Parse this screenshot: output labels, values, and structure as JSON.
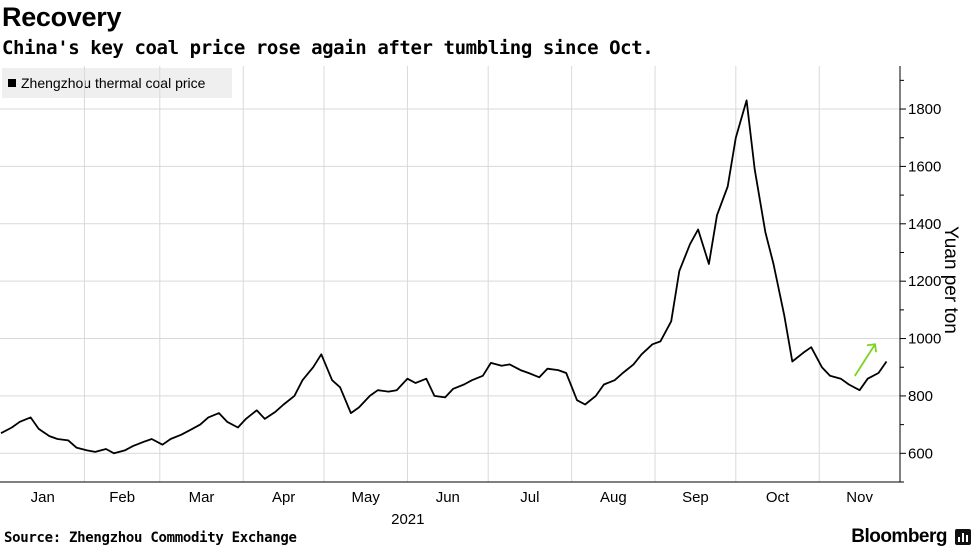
{
  "title": "Recovery",
  "subtitle": "China's key coal price rose again after tumbling since Oct.",
  "source": "Source: Zhengzhou Commodity Exchange",
  "brand": "Bloomberg",
  "colors": {
    "line": "#000000",
    "grid": "#d9d9d9",
    "arrow": "#7dd321",
    "legend_bg": "#efefef"
  },
  "chart_data": {
    "type": "line",
    "title": "Recovery",
    "subtitle": "China's key coal price rose again after tumbling since Oct.",
    "ylabel": "Yuan per ton",
    "xlabel": "2021",
    "ylim": [
      500,
      1950
    ],
    "yticks": [
      600,
      800,
      1000,
      1200,
      1400,
      1600,
      1800
    ],
    "y_axis_side": "right",
    "grid": true,
    "legend_position": "top-left",
    "x_tick_labels": [
      "Jan",
      "Feb",
      "Mar",
      "Apr",
      "May",
      "Jun",
      "Jul",
      "Aug",
      "Sep",
      "Oct",
      "Nov"
    ],
    "x_year_label": "2021",
    "annotation": "up-arrow",
    "series": [
      {
        "name": "Zhengzhou thermal coal price",
        "x": [
          "2021-01-01",
          "2021-01-05",
          "2021-01-08",
          "2021-01-12",
          "2021-01-15",
          "2021-01-19",
          "2021-01-22",
          "2021-01-26",
          "2021-01-29",
          "2021-02-02",
          "2021-02-05",
          "2021-02-09",
          "2021-02-12",
          "2021-02-16",
          "2021-02-19",
          "2021-02-23",
          "2021-02-26",
          "2021-03-02",
          "2021-03-05",
          "2021-03-09",
          "2021-03-12",
          "2021-03-16",
          "2021-03-19",
          "2021-03-23",
          "2021-03-26",
          "2021-03-30",
          "2021-04-02",
          "2021-04-06",
          "2021-04-09",
          "2021-04-13",
          "2021-04-16",
          "2021-04-20",
          "2021-04-23",
          "2021-04-27",
          "2021-04-30",
          "2021-05-04",
          "2021-05-07",
          "2021-05-11",
          "2021-05-14",
          "2021-05-18",
          "2021-05-21",
          "2021-05-25",
          "2021-05-28",
          "2021-06-01",
          "2021-06-04",
          "2021-06-08",
          "2021-06-11",
          "2021-06-15",
          "2021-06-18",
          "2021-06-22",
          "2021-06-25",
          "2021-06-29",
          "2021-07-02",
          "2021-07-06",
          "2021-07-09",
          "2021-07-13",
          "2021-07-16",
          "2021-07-20",
          "2021-07-23",
          "2021-07-27",
          "2021-07-30",
          "2021-08-03",
          "2021-08-06",
          "2021-08-10",
          "2021-08-13",
          "2021-08-17",
          "2021-08-20",
          "2021-08-24",
          "2021-08-27",
          "2021-08-31",
          "2021-09-03",
          "2021-09-07",
          "2021-09-10",
          "2021-09-14",
          "2021-09-17",
          "2021-09-21",
          "2021-09-24",
          "2021-09-28",
          "2021-10-01",
          "2021-10-05",
          "2021-10-08",
          "2021-10-12",
          "2021-10-15",
          "2021-10-19",
          "2021-10-22",
          "2021-10-26",
          "2021-10-29",
          "2021-11-02",
          "2021-11-05",
          "2021-11-09",
          "2021-11-12",
          "2021-11-16",
          "2021-11-19",
          "2021-11-23",
          "2021-11-26"
        ],
        "values": [
          670,
          690,
          710,
          725,
          685,
          660,
          650,
          645,
          620,
          610,
          605,
          615,
          600,
          610,
          625,
          640,
          650,
          630,
          650,
          665,
          680,
          700,
          725,
          740,
          710,
          690,
          720,
          750,
          720,
          745,
          770,
          800,
          855,
          900,
          945,
          855,
          830,
          740,
          760,
          800,
          820,
          815,
          820,
          860,
          845,
          860,
          800,
          795,
          825,
          840,
          855,
          870,
          915,
          905,
          910,
          890,
          880,
          865,
          895,
          890,
          880,
          785,
          770,
          800,
          840,
          855,
          880,
          910,
          945,
          980,
          990,
          1060,
          1235,
          1330,
          1380,
          1260,
          1430,
          1530,
          1700,
          1830,
          1590,
          1370,
          1260,
          1080,
          920,
          950,
          970,
          900,
          870,
          860,
          840,
          820,
          860,
          880,
          920
        ]
      }
    ]
  }
}
